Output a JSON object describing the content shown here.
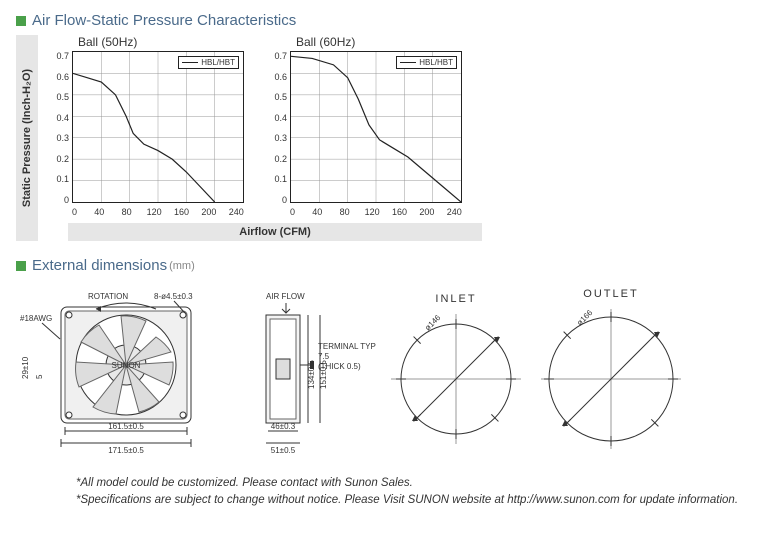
{
  "section1": {
    "title": "Air Flow-Static Pressure Characteristics",
    "ylabel": "Static Pressure (Inch-H₂O)",
    "xlabel": "Airflow (CFM)",
    "charts": [
      {
        "title": "Ball (50Hz)",
        "legend": "HBL/HBT",
        "xlim": [
          0,
          240
        ],
        "xticks": [
          0,
          40,
          80,
          120,
          160,
          200,
          240
        ],
        "ylim": [
          0,
          0.7
        ],
        "yticks": [
          "0.7",
          "0.6",
          "0.5",
          "0.4",
          "0.3",
          "0.2",
          "0.1",
          "0"
        ],
        "series": [
          {
            "color": "#222222",
            "width": 1.2,
            "points": [
              [
                0,
                0.6
              ],
              [
                20,
                0.58
              ],
              [
                40,
                0.56
              ],
              [
                60,
                0.5
              ],
              [
                75,
                0.4
              ],
              [
                85,
                0.32
              ],
              [
                100,
                0.27
              ],
              [
                120,
                0.24
              ],
              [
                140,
                0.2
              ],
              [
                160,
                0.14
              ],
              [
                180,
                0.07
              ],
              [
                200,
                0.0
              ]
            ]
          }
        ],
        "grid_color": "#999999",
        "bg": "#ffffff",
        "border": "#222222"
      },
      {
        "title": "Ball (60Hz)",
        "legend": "HBL/HBT",
        "xlim": [
          0,
          240
        ],
        "xticks": [
          0,
          40,
          80,
          120,
          160,
          200,
          240
        ],
        "ylim": [
          0,
          0.7
        ],
        "yticks": [
          "0.7",
          "0.6",
          "0.5",
          "0.4",
          "0.3",
          "0.2",
          "0.1",
          "0"
        ],
        "series": [
          {
            "color": "#222222",
            "width": 1.2,
            "points": [
              [
                0,
                0.68
              ],
              [
                30,
                0.67
              ],
              [
                60,
                0.64
              ],
              [
                80,
                0.58
              ],
              [
                95,
                0.48
              ],
              [
                110,
                0.36
              ],
              [
                125,
                0.29
              ],
              [
                145,
                0.25
              ],
              [
                165,
                0.21
              ],
              [
                190,
                0.14
              ],
              [
                215,
                0.07
              ],
              [
                240,
                0.0
              ]
            ]
          }
        ],
        "grid_color": "#999999",
        "bg": "#ffffff",
        "border": "#222222"
      }
    ]
  },
  "section2": {
    "title": "External dimensions",
    "units": "(mm)",
    "front": {
      "rotation_label": "ROTATION",
      "hole_label": "8-ø4.5±0.3",
      "awg_label": "#18AWG",
      "brand": "SUNON",
      "h_label": "29±10",
      "h2_label": "5",
      "width_inner": "161.5±0.5",
      "width_outer": "171.5±0.5",
      "colors": {
        "stroke": "#333333",
        "fill": "#ffffff",
        "shade": "#e8e8e8"
      }
    },
    "side": {
      "airflow_label": "AIR FLOW",
      "term_label1": "TERMINAL TYPE",
      "term_label2": "7.5",
      "term_label3": "(THICK 0.5)",
      "d1": "134±0.5",
      "d2": "151±0.5",
      "b1": "46±0.3",
      "b2": "51±0.5"
    },
    "inlet": {
      "label": "INLET",
      "diameter": "ø146",
      "spokes": 8
    },
    "outlet": {
      "label": "OUTLET",
      "diameter": "ø166",
      "spokes": 8
    }
  },
  "footnotes": [
    "*All model could be customized. Please contact with Sunon Sales.",
    "*Specifications are subject to change without notice. Please  Visit SUNON website at http://www.sunon.com for update information."
  ],
  "style": {
    "accent": "#4aa04a",
    "heading_color": "#4a6a8a",
    "band_bg": "#e6e6e6"
  }
}
